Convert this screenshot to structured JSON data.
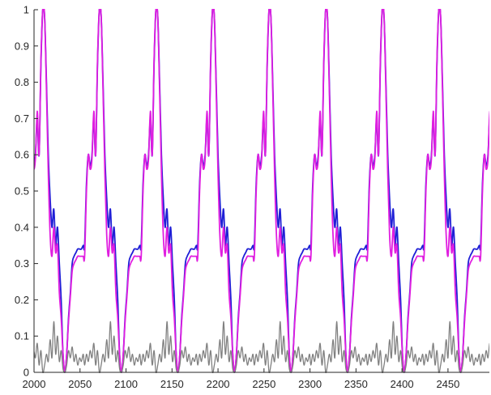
{
  "chart_data": {
    "type": "line",
    "title": "",
    "xlabel": "",
    "ylabel": "",
    "xlim": [
      2000,
      2495
    ],
    "ylim": [
      0,
      1
    ],
    "x_ticks": [
      2000,
      2050,
      2100,
      2150,
      2200,
      2250,
      2300,
      2350,
      2400,
      2450
    ],
    "x_tick_labels": [
      "2000",
      "2050",
      "2100",
      "2150",
      "2200",
      "2250",
      "2300",
      "2350",
      "2400",
      "2450"
    ],
    "y_ticks": [
      0,
      0.1,
      0.2,
      0.3,
      0.4,
      0.5,
      0.6,
      0.7,
      0.8,
      0.9,
      1
    ],
    "y_tick_labels": [
      "0",
      "0.1",
      "0.2",
      "0.3",
      "0.4",
      "0.5",
      "0.6",
      "0.7",
      "0.8",
      "0.9",
      "1"
    ],
    "grid": false,
    "legend": "none",
    "period": 61.5,
    "x_start": 1993.5,
    "series": [
      {
        "color": "#1f1fd6",
        "x_offset": [
          0,
          2,
          4,
          6,
          8,
          10,
          12,
          14,
          16,
          18,
          20,
          22,
          24,
          26,
          28,
          30,
          32,
          34,
          36,
          38,
          40,
          42,
          44,
          46,
          48,
          50,
          52,
          54,
          56,
          58,
          60,
          61.5
        ],
        "values": [
          0.35,
          0.52,
          0.6,
          0.57,
          0.6,
          0.7,
          0.6,
          0.85,
          1.0,
          0.98,
          0.8,
          0.6,
          0.48,
          0.4,
          0.45,
          0.35,
          0.4,
          0.3,
          0.2,
          0.05,
          0.0,
          0.05,
          0.15,
          0.22,
          0.3,
          0.32,
          0.33,
          0.34,
          0.34,
          0.34,
          0.35,
          0.35
        ]
      },
      {
        "color": "#e01ee0",
        "x_offset": [
          0,
          2,
          4,
          6,
          8,
          10,
          12,
          14,
          16,
          18,
          20,
          22,
          24,
          26,
          28,
          30,
          32,
          34,
          36,
          38,
          40,
          42,
          44,
          46,
          48,
          50,
          52,
          54,
          56,
          58,
          60,
          61.5
        ],
        "values": [
          0.32,
          0.5,
          0.6,
          0.56,
          0.59,
          0.72,
          0.6,
          0.86,
          1.0,
          0.98,
          0.78,
          0.55,
          0.38,
          0.32,
          0.4,
          0.33,
          0.35,
          0.22,
          0.15,
          0.05,
          0.0,
          0.05,
          0.14,
          0.21,
          0.28,
          0.3,
          0.31,
          0.32,
          0.32,
          0.32,
          0.32,
          0.32
        ]
      },
      {
        "color": "#808080",
        "x_offset": [
          0,
          2,
          4,
          6,
          8,
          10,
          12,
          14,
          16,
          18,
          20,
          22,
          24,
          26,
          28,
          30,
          32,
          34,
          36,
          38,
          40,
          42,
          44,
          46,
          48,
          50,
          52,
          54,
          56,
          58,
          60,
          61.5
        ],
        "values": [
          0.02,
          0.05,
          0.03,
          0.06,
          0.04,
          0.08,
          0.02,
          0.06,
          0.0,
          0.02,
          0.05,
          0.03,
          0.09,
          0.04,
          0.14,
          0.05,
          0.1,
          0.03,
          0.06,
          0.01,
          0.0,
          0.02,
          0.06,
          0.04,
          0.07,
          0.03,
          0.05,
          0.02,
          0.04,
          0.03,
          0.05,
          0.02
        ]
      }
    ]
  }
}
